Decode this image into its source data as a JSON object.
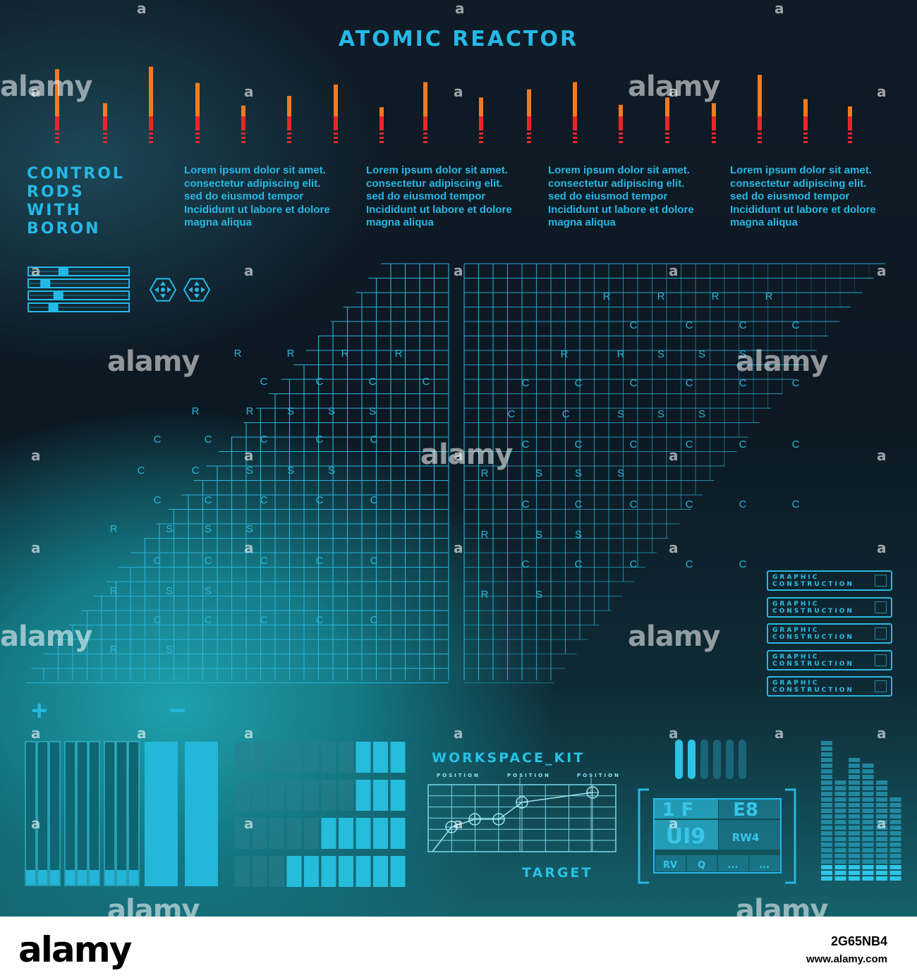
{
  "title": "ATOMIC REACTOR",
  "control_title": "CONTROL\nRODS\nWITH\nBORON",
  "lorem_blocks": [
    "Lorem ipsum dolor sit amet.\nconsectetur adipiscing elit.\nsed do eiusmod tempor\nIncididunt ut labore et dolore\nmagna aliqua",
    "Lorem ipsum dolor sit amet.\nconsectetur adipiscing elit.\nsed do eiusmod tempor\nIncididunt ut labore et dolore\nmagna aliqua",
    "Lorem ipsum dolor sit amet.\nconsectetur adipiscing elit.\nsed do eiusmod tempor\nIncididunt ut labore et dolore\nmagna aliqua",
    "Lorem ipsum dolor sit amet.\nconsectetur adipiscing elit.\nsed do eiusmod tempor\nIncididunt ut labore et dolore\nmagna aliqua"
  ],
  "rod_levels": [
    0.93,
    0.51,
    0.96,
    0.76,
    0.48,
    0.6,
    0.74,
    0.46,
    0.77,
    0.58,
    0.68,
    0.77,
    0.49,
    0.58,
    0.51,
    0.86,
    0.56,
    0.47
  ],
  "grid_letters": {
    "left": {
      "rows": [
        {
          "letters": [
            "R",
            "R",
            "R",
            "R"
          ]
        },
        {
          "letters": [
            "C",
            "C",
            "C",
            "C"
          ]
        },
        {
          "letters": [
            "R",
            "R",
            "S",
            "S",
            "S"
          ]
        },
        {
          "letters": [
            "C",
            "C",
            "C",
            "C",
            "C"
          ]
        },
        {
          "letters": [
            "C",
            "C",
            "S",
            "S",
            "S"
          ]
        },
        {
          "letters": [
            "C",
            "C",
            "C",
            "C",
            "C"
          ]
        },
        {
          "letters": [
            "R",
            "S",
            "S",
            "S"
          ]
        },
        {
          "letters": [
            "C",
            "C",
            "C",
            "C",
            "C"
          ]
        },
        {
          "letters": [
            "R",
            "S",
            "S"
          ]
        },
        {
          "letters": [
            "C",
            "C",
            "C",
            "C",
            "C"
          ]
        },
        {
          "letters": [
            "R",
            "S"
          ]
        }
      ]
    },
    "right": {
      "rows": [
        {
          "letters": [
            "R",
            "R",
            "R",
            "R"
          ]
        },
        {
          "letters": [
            "C",
            "C",
            "C",
            "C"
          ]
        },
        {
          "letters": [
            "R",
            "R",
            "S",
            "S",
            "S"
          ]
        },
        {
          "letters": [
            "C",
            "C",
            "C",
            "C",
            "C",
            "C"
          ]
        },
        {
          "letters": [
            "C",
            "C",
            "S",
            "S",
            "S"
          ]
        },
        {
          "letters": [
            "C",
            "C",
            "C",
            "C",
            "C",
            "C"
          ]
        },
        {
          "letters": [
            "R",
            "S",
            "S",
            "S"
          ]
        },
        {
          "letters": [
            "C",
            "C",
            "C",
            "C",
            "C",
            "C"
          ]
        },
        {
          "letters": [
            "R",
            "S",
            "S"
          ]
        },
        {
          "letters": [
            "C",
            "C",
            "C",
            "C",
            "C"
          ]
        },
        {
          "letters": [
            "R",
            "S"
          ]
        }
      ]
    }
  },
  "slider_levels": [
    0.3,
    0.12,
    0.25,
    0.2
  ],
  "graphic_buttons": [
    {
      "label": "GRAPHIC\nCONSTRUCTION"
    },
    {
      "label": "GRAPHIC\nCONSTRUCTION"
    },
    {
      "label": "GRAPHIC\nCONSTRUCTION"
    },
    {
      "label": "GRAPHIC\nCONSTRUCTION"
    },
    {
      "label": "GRAPHIC\nCONSTRUCTION"
    }
  ],
  "plus_label": "+",
  "minus_label": "−",
  "workspace_title": "WORKSPACE_KIT",
  "position_labels": [
    "POSITION",
    "POSITION",
    "POSITION"
  ],
  "target_label": "TARGET",
  "readout": {
    "r1a": "1 F",
    "r1b": "E8",
    "r2a": "UI9",
    "r2b": "RW4",
    "r3": [
      "RV",
      "Q",
      "...",
      "..."
    ]
  },
  "equalizer_levels": [
    0.82,
    0.58,
    0.72,
    0.68,
    0.58,
    0.5
  ],
  "watermark": "alamy",
  "footer": {
    "logo": "alamy",
    "image_id": "2G65NB4",
    "url": "www.alamy.com"
  },
  "colors": {
    "accent": "#25b9e6",
    "grid_line": "#2ab4d8",
    "rod_orange": "#f47a20",
    "rod_red": "#e8262a",
    "panel_dark": "#0f1b26"
  }
}
